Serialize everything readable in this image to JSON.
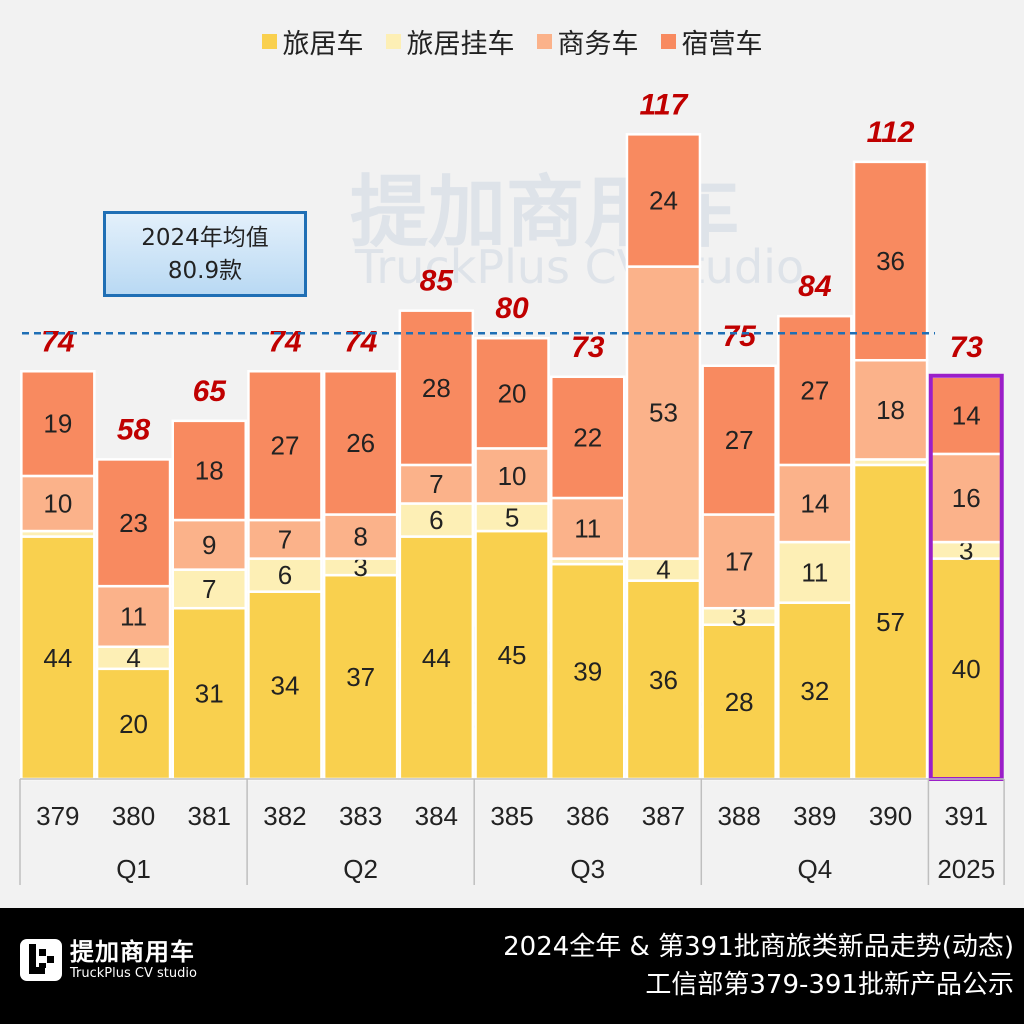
{
  "chart_data": {
    "type": "bar",
    "stacked": true,
    "categories": [
      "379",
      "380",
      "381",
      "382",
      "383",
      "384",
      "385",
      "386",
      "387",
      "388",
      "389",
      "390",
      "391"
    ],
    "groups": [
      {
        "label": "Q1",
        "span": 3
      },
      {
        "label": "Q2",
        "span": 3
      },
      {
        "label": "Q3",
        "span": 3
      },
      {
        "label": "Q4",
        "span": 3
      },
      {
        "label": "2025",
        "span": 1
      }
    ],
    "series": [
      {
        "name": "旅居车",
        "color": "#F9D04E",
        "values": [
          44,
          20,
          31,
          34,
          37,
          44,
          45,
          39,
          36,
          28,
          32,
          57,
          40
        ],
        "show_labels": [
          true,
          true,
          true,
          true,
          true,
          true,
          true,
          true,
          true,
          true,
          true,
          true,
          true
        ]
      },
      {
        "name": "旅居挂车",
        "color": "#FDEFB5",
        "values": [
          1,
          4,
          7,
          6,
          3,
          6,
          5,
          1,
          4,
          3,
          11,
          1,
          3
        ],
        "show_labels": [
          false,
          true,
          true,
          true,
          true,
          true,
          true,
          false,
          true,
          true,
          true,
          false,
          true
        ]
      },
      {
        "name": "商务车",
        "color": "#FBB28A",
        "values": [
          10,
          11,
          9,
          7,
          8,
          7,
          10,
          11,
          53,
          17,
          14,
          18,
          16
        ],
        "show_labels": [
          true,
          true,
          true,
          true,
          true,
          true,
          true,
          true,
          true,
          true,
          true,
          true,
          true
        ]
      },
      {
        "name": "宿营车",
        "color": "#F88A60",
        "values": [
          19,
          23,
          18,
          27,
          26,
          28,
          20,
          22,
          24,
          27,
          27,
          36,
          14
        ],
        "show_labels": [
          true,
          true,
          true,
          true,
          true,
          true,
          true,
          true,
          true,
          true,
          true,
          true,
          true
        ]
      }
    ],
    "totals": [
      74,
      58,
      65,
      74,
      74,
      85,
      80,
      73,
      117,
      75,
      84,
      112,
      73
    ],
    "average_line": {
      "value": 80.9,
      "label_line1": "2024年均值",
      "label_line2": "80.9款",
      "color": "#1F6FB5"
    },
    "highlight_category": "391",
    "highlight_color": "#9B1FC8",
    "total_label_color": "#C00000",
    "ylim": [
      0,
      140
    ],
    "grid": false,
    "legend_position": "top"
  },
  "watermark": {
    "cn": "提加商用车",
    "en": "TruckPlus CV studio"
  },
  "footer": {
    "logo_cn": "提加商用车",
    "logo_en": "TruckPlus CV studio",
    "title_line1": "2024全年 & 第391批商旅类新品走势(动态)",
    "title_line2": "工信部第379-391批新产品公示"
  }
}
